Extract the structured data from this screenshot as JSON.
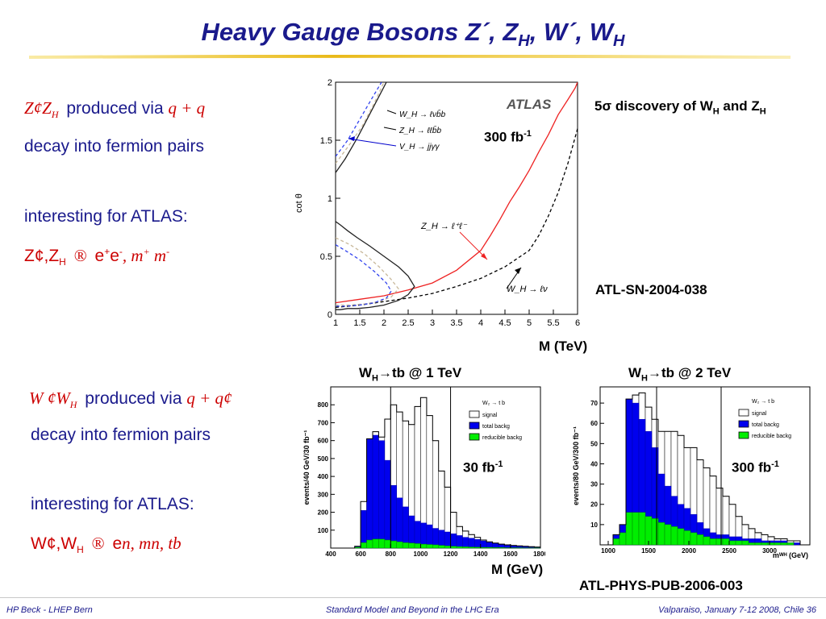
{
  "slide": {
    "title_main": "Heavy Gauge Bosons Z´, Z",
    "title_sub_h1": "H",
    "title_mid": ", W´, W",
    "title_sub_h2": "H"
  },
  "left_z": {
    "formula1": "Z¢Z",
    "formula1_sub": "H",
    "produced_via": "produced via",
    "via_formula": "q + q",
    "decay": "decay into fermion pairs",
    "interesting": "interesting for ATLAS:",
    "channel_a": "Z¢,Z",
    "channel_a_sub": "H",
    "arrow_sym": "®",
    "channel_b": "e",
    "channel_b_sup1": "+",
    "channel_b2": "e",
    "channel_b_sup2": "-",
    "channel_c": ", m",
    "channel_c_sup1": "+",
    "channel_c2": " m",
    "channel_c_sup2": "-"
  },
  "left_w": {
    "formula1": "W ¢W",
    "formula1_sub": "H",
    "produced_via": "produced via",
    "via_formula": "q + q¢",
    "decay": "decay into fermion pairs",
    "interesting": "interesting for ATLAS:",
    "channel_a": "W¢,W",
    "channel_a_sub": "H",
    "arrow_sym": "®",
    "channel_b": "e",
    "channel_c": "n, mn, tb"
  },
  "top_chart_labels": {
    "discovery": "5",
    "discovery_sigma": "σ",
    "discovery_rest": " discovery of W",
    "discovery_sub1": "H",
    "discovery_and": " and Z",
    "discovery_sub2": "H",
    "lumi": "300 fb",
    "lumi_sup": "-1",
    "ref": "ATL-SN-2004-038",
    "xlabel": "M (TeV)"
  },
  "bottom_labels": {
    "left_title": "W",
    "left_title_sub": "H",
    "left_title_rest": "→tb @ 1 TeV",
    "right_title": "W",
    "right_title_sub": "H",
    "right_title_rest": "→tb @ 2 TeV",
    "lumi_left": "30 fb",
    "lumi_left_sup": "-1",
    "lumi_right": "300 fb",
    "lumi_right_sup": "-1",
    "xlabel": "M (GeV)",
    "ref": "ATL-PHYS-PUB-2006-003"
  },
  "footer": {
    "left": "HP Beck - LHEP Bern",
    "center": "Standard Model and Beyond in the LHC Era",
    "right": "Valparaiso, January 7-12 2008, Chile  36"
  },
  "chart_data": [
    {
      "type": "line",
      "ylabel": "cot θ",
      "xlim": [
        1,
        6
      ],
      "ylim": [
        0,
        2
      ],
      "x_ticks": [
        "1",
        "1.5",
        "2",
        "2.5",
        "3",
        "3.5",
        "4",
        "4.5",
        "5",
        "5.5",
        "6"
      ],
      "y_ticks": [
        "0",
        "0.5",
        "1",
        "1.5",
        "2"
      ],
      "legend": [
        "W_H → ℓνb̄b",
        "Z_H → ℓℓb̄b",
        "V_H → jjγγ"
      ],
      "annotations": [
        "ATLAS",
        "Z_H → ℓ⁺ℓ⁻",
        "W_H → ℓν"
      ],
      "series": [
        {
          "name": "Z_H → ℓ⁺ℓ⁻",
          "color": "#ee2222",
          "dash": "solid",
          "x": [
            1.0,
            1.5,
            2.0,
            2.5,
            3.0,
            3.5,
            4.0,
            4.2,
            4.4,
            4.6,
            4.8,
            5.0,
            5.2,
            5.4,
            5.6,
            5.8,
            5.95,
            6.0
          ],
          "y": [
            0.1,
            0.13,
            0.16,
            0.21,
            0.27,
            0.38,
            0.55,
            0.68,
            0.82,
            0.97,
            1.1,
            1.24,
            1.4,
            1.55,
            1.72,
            1.85,
            1.95,
            2.0
          ]
        },
        {
          "name": "W_H → ℓν",
          "color": "#000000",
          "dash": "dashed",
          "x": [
            1.0,
            1.5,
            2.0,
            2.5,
            3.0,
            3.5,
            4.0,
            4.5,
            5.0,
            5.2,
            5.4,
            5.6,
            5.8,
            6.0
          ],
          "y": [
            0.06,
            0.08,
            0.11,
            0.14,
            0.18,
            0.24,
            0.31,
            0.41,
            0.55,
            0.68,
            0.85,
            1.05,
            1.3,
            1.6
          ]
        },
        {
          "name": "W_H → ℓνb̄b",
          "color": "#222222",
          "dash": "solid",
          "x": [
            1.0,
            1.1,
            1.25,
            1.45,
            1.7,
            2.0,
            2.3,
            2.5,
            2.63,
            2.5,
            2.3,
            2.0,
            1.7,
            1.45,
            1.25,
            1.1,
            1.0
          ],
          "y": [
            0.8,
            0.77,
            0.72,
            0.66,
            0.59,
            0.5,
            0.41,
            0.33,
            0.24,
            0.17,
            0.12,
            0.08,
            0.06,
            0.05,
            0.05,
            0.04,
            0.04
          ]
        },
        {
          "name": "Z_H → ℓℓb̄b",
          "color": "#c8b89a",
          "dash": "dashed",
          "x": [
            1.0,
            1.3,
            1.6,
            1.9,
            2.15,
            2.3,
            2.15,
            1.9,
            1.6,
            1.3,
            1.0
          ],
          "y": [
            0.66,
            0.6,
            0.52,
            0.41,
            0.3,
            0.22,
            0.15,
            0.11,
            0.09,
            0.08,
            0.08
          ]
        },
        {
          "name": "V_H → jjγγ",
          "color": "#3344ee",
          "dash": "dashed",
          "x": [
            1.0,
            1.2,
            1.5,
            1.8,
            2.05,
            2.15,
            2.05,
            1.8,
            1.5,
            1.2,
            1.0
          ],
          "y": [
            0.6,
            0.55,
            0.47,
            0.37,
            0.27,
            0.2,
            0.14,
            0.1,
            0.08,
            0.07,
            0.07
          ]
        }
      ],
      "upper_curves": [
        {
          "color": "#222222",
          "dash": "solid",
          "x": [
            1.0,
            1.2,
            1.45,
            1.7,
            1.9,
            2.05
          ],
          "y": [
            1.22,
            1.34,
            1.52,
            1.72,
            1.88,
            2.0
          ]
        },
        {
          "color": "#c8b89a",
          "dash": "dashed",
          "x": [
            1.0,
            1.25,
            1.55,
            1.8,
            2.0
          ],
          "y": [
            1.3,
            1.44,
            1.62,
            1.82,
            2.0
          ]
        },
        {
          "color": "#3344ee",
          "dash": "dashed",
          "x": [
            1.0,
            1.25,
            1.5,
            1.75,
            1.95
          ],
          "y": [
            1.36,
            1.5,
            1.68,
            1.86,
            2.0
          ]
        }
      ]
    },
    {
      "type": "bar",
      "ylabel": "events/40 GeV/30 fb⁻¹",
      "xlim": [
        400,
        1800
      ],
      "ylim": [
        0,
        900
      ],
      "x_ticks": [
        "400",
        "600",
        "800",
        "1000",
        "1200",
        "1400",
        "1600",
        "1800"
      ],
      "y_ticks": [
        "100",
        "200",
        "300",
        "400",
        "500",
        "600",
        "700",
        "800"
      ],
      "legend_title": "W₂ → t b",
      "legend": [
        "signal",
        "total backg",
        "reducible backg"
      ],
      "bin_edges": [
        400,
        440,
        480,
        520,
        560,
        600,
        640,
        680,
        720,
        760,
        800,
        840,
        880,
        920,
        960,
        1000,
        1040,
        1080,
        1120,
        1160,
        1200,
        1240,
        1280,
        1320,
        1360,
        1400,
        1440,
        1480,
        1520,
        1560,
        1600,
        1640,
        1680,
        1720,
        1760,
        1800
      ],
      "total_stack": [
        0,
        0,
        0,
        0,
        10,
        260,
        610,
        650,
        620,
        720,
        800,
        760,
        710,
        690,
        790,
        840,
        740,
        600,
        430,
        340,
        200,
        120,
        95,
        75,
        60,
        45,
        35,
        28,
        22,
        18,
        15,
        12,
        10,
        8,
        6
      ],
      "total_backg": [
        0,
        0,
        0,
        0,
        10,
        210,
        610,
        630,
        600,
        490,
        350,
        280,
        230,
        180,
        150,
        140,
        130,
        110,
        100,
        90,
        80,
        70,
        60,
        55,
        48,
        40,
        32,
        26,
        20,
        16,
        13,
        10,
        8,
        6,
        5
      ],
      "reducible_backg": [
        0,
        0,
        0,
        0,
        5,
        30,
        45,
        50,
        50,
        45,
        40,
        35,
        30,
        28,
        25,
        22,
        20,
        18,
        15,
        12,
        10,
        8,
        7,
        6,
        5,
        4,
        4,
        3,
        3,
        2,
        2,
        2,
        1,
        1,
        1
      ],
      "cut_lines_x": [
        800,
        1200
      ]
    },
    {
      "type": "bar",
      "ylabel": "events/80 GeV/300 fb⁻¹",
      "xlabel": "mᵂᴴ (GeV)",
      "xlim": [
        900,
        3500
      ],
      "ylim": [
        0,
        78
      ],
      "x_ticks": [
        "1000",
        "1500",
        "2000",
        "2500",
        "3000"
      ],
      "y_ticks": [
        "10",
        "20",
        "30",
        "40",
        "50",
        "60",
        "70"
      ],
      "legend_title": "W₂ → t b",
      "legend": [
        "signal",
        "total backg",
        "reducible backg"
      ],
      "bin_edges": [
        900,
        980,
        1060,
        1140,
        1220,
        1300,
        1380,
        1460,
        1540,
        1620,
        1700,
        1780,
        1860,
        1940,
        2020,
        2100,
        2180,
        2260,
        2340,
        2420,
        2500,
        2580,
        2660,
        2740,
        2820,
        2900,
        2980,
        3060,
        3140,
        3220,
        3300,
        3380,
        3460
      ],
      "total_stack": [
        0,
        0,
        5,
        10,
        72,
        74,
        75,
        68,
        62,
        56,
        56,
        56,
        54,
        48,
        48,
        42,
        38,
        34,
        28,
        24,
        20,
        14,
        10,
        8,
        6,
        5,
        4,
        3,
        3,
        2,
        2,
        0
      ],
      "total_backg": [
        0,
        0,
        5,
        10,
        72,
        70,
        62,
        56,
        48,
        35,
        29,
        24,
        20,
        18,
        15,
        11,
        8,
        6,
        5,
        5,
        4,
        4,
        3,
        3,
        3,
        2,
        2,
        2,
        2,
        1,
        1,
        0
      ],
      "reducible_backg": [
        0,
        0,
        3,
        6,
        16,
        16,
        16,
        14,
        13,
        11,
        10,
        9,
        8,
        7,
        6,
        5,
        4,
        3,
        3,
        3,
        2,
        2,
        2,
        1,
        1,
        1,
        1,
        1,
        1,
        1,
        0,
        0
      ],
      "cut_lines_x": [
        1600,
        2400
      ]
    }
  ]
}
